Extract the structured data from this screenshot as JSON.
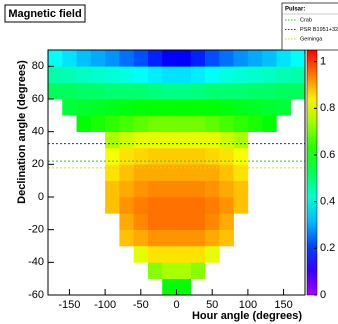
{
  "chart_data": {
    "type": "heatmap",
    "title": "Magnetic field",
    "xlabel": "Hour angle (degrees)",
    "ylabel": "Declination angle (degrees)",
    "xlim": [
      -180,
      180
    ],
    "ylim": [
      -60,
      90
    ],
    "xticks": [
      -150,
      -100,
      -50,
      0,
      50,
      100,
      150
    ],
    "yticks": [
      -60,
      -40,
      -20,
      0,
      20,
      40,
      60,
      80
    ],
    "zlim": [
      0,
      1.05
    ],
    "zticks": [
      0,
      0.2,
      0.4,
      0.6,
      0.8,
      1
    ],
    "x_bins": [
      -180,
      -160,
      -140,
      -120,
      -100,
      -80,
      -60,
      -40,
      -20,
      0,
      20,
      40,
      60,
      80,
      100,
      120,
      140,
      160,
      180
    ],
    "y_bins": [
      -60,
      -50,
      -40,
      -30,
      -20,
      -10,
      0,
      10,
      20,
      30,
      40,
      50,
      60,
      70,
      80,
      90
    ],
    "z": [
      [
        null,
        null,
        null,
        null,
        null,
        null,
        null,
        null,
        0.6,
        0.6,
        null,
        null,
        null,
        null,
        null,
        null,
        null,
        null
      ],
      [
        null,
        null,
        null,
        null,
        null,
        null,
        null,
        0.72,
        0.75,
        0.75,
        0.72,
        null,
        null,
        null,
        null,
        null,
        null,
        null
      ],
      [
        null,
        null,
        null,
        null,
        null,
        null,
        0.8,
        0.85,
        0.85,
        0.85,
        0.85,
        0.8,
        null,
        null,
        null,
        null,
        null,
        null
      ],
      [
        null,
        null,
        null,
        null,
        null,
        0.88,
        0.9,
        0.92,
        0.92,
        0.92,
        0.92,
        0.9,
        0.88,
        null,
        null,
        null,
        null,
        null
      ],
      [
        null,
        null,
        null,
        null,
        null,
        0.9,
        0.93,
        0.95,
        0.95,
        0.95,
        0.95,
        0.93,
        0.9,
        null,
        null,
        null,
        null,
        null
      ],
      [
        null,
        null,
        null,
        null,
        0.88,
        0.92,
        0.94,
        0.95,
        0.95,
        0.95,
        0.95,
        0.94,
        0.92,
        0.88,
        null,
        null,
        null,
        null
      ],
      [
        null,
        null,
        null,
        null,
        0.88,
        0.9,
        0.92,
        0.93,
        0.93,
        0.93,
        0.93,
        0.92,
        0.9,
        0.88,
        null,
        null,
        null,
        null
      ],
      [
        null,
        null,
        null,
        null,
        0.85,
        0.88,
        0.9,
        0.9,
        0.9,
        0.9,
        0.9,
        0.9,
        0.88,
        0.85,
        null,
        null,
        null,
        null
      ],
      [
        null,
        null,
        null,
        null,
        0.82,
        0.85,
        0.86,
        0.87,
        0.87,
        0.87,
        0.87,
        0.86,
        0.85,
        0.82,
        null,
        null,
        null,
        null
      ],
      [
        null,
        null,
        null,
        null,
        0.75,
        0.78,
        0.8,
        0.8,
        0.8,
        0.8,
        0.8,
        0.8,
        0.78,
        0.75,
        null,
        null,
        null,
        null
      ],
      [
        null,
        null,
        0.6,
        0.62,
        0.64,
        0.66,
        0.68,
        0.7,
        0.7,
        0.7,
        0.7,
        0.68,
        0.66,
        0.64,
        0.62,
        0.6,
        null,
        null
      ],
      [
        null,
        0.55,
        0.56,
        0.57,
        0.58,
        0.59,
        0.6,
        0.6,
        0.6,
        0.6,
        0.6,
        0.6,
        0.59,
        0.58,
        0.57,
        0.56,
        0.55,
        null
      ],
      [
        0.52,
        0.52,
        0.51,
        0.51,
        0.5,
        0.5,
        0.5,
        0.49,
        0.48,
        0.48,
        0.49,
        0.5,
        0.5,
        0.5,
        0.51,
        0.51,
        0.52,
        0.52
      ],
      [
        0.45,
        0.44,
        0.43,
        0.42,
        0.41,
        0.4,
        0.38,
        0.36,
        0.35,
        0.35,
        0.36,
        0.38,
        0.4,
        0.41,
        0.42,
        0.43,
        0.44,
        0.45
      ],
      [
        0.38,
        0.35,
        0.32,
        0.3,
        0.28,
        0.25,
        0.22,
        0.18,
        0.15,
        0.15,
        0.18,
        0.22,
        0.25,
        0.28,
        0.3,
        0.32,
        0.35,
        0.38
      ]
    ],
    "legend_title": "Pulsar:",
    "legend": "upper right",
    "lines": [
      {
        "name": "Crab",
        "color": "#22cc22",
        "value": 22
      },
      {
        "name": "PSR B1951+32",
        "color": "#2222dd",
        "value": 32.7
      },
      {
        "name": "Geminga",
        "color": "#dddd00",
        "value": 17.8
      }
    ]
  }
}
